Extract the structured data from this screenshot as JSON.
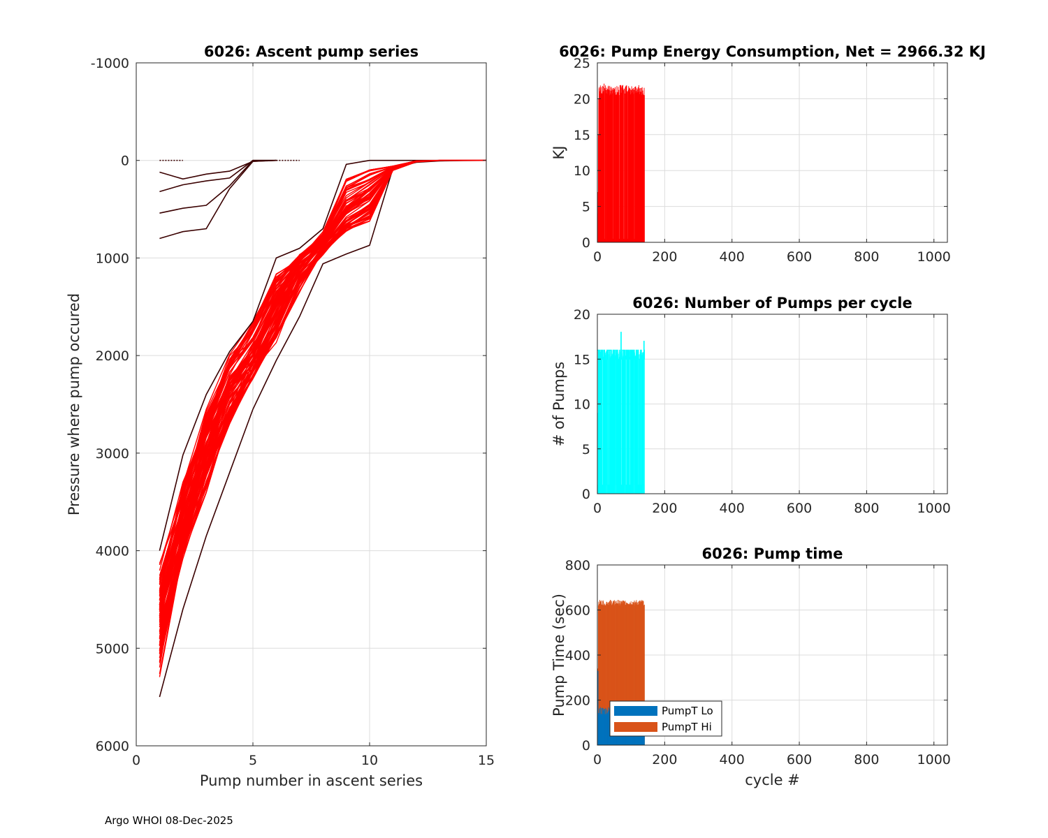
{
  "footer": "Argo WHOI 08-Dec-2025",
  "colors": {
    "profile": "#ff0000",
    "profile_edge": "#3a0000",
    "energy": "#ff0000",
    "pumps": "#00ffff",
    "lo": "#0072bd",
    "hi": "#d95319",
    "grid": "#dcdcdc"
  },
  "chart_data": [
    {
      "id": "ascent",
      "type": "line",
      "title": "6026: Ascent pump series",
      "xlabel": "Pump number in ascent series",
      "ylabel": "Pressure where pump occured",
      "xlim": [
        0,
        15
      ],
      "ylim": [
        -1000,
        6000
      ],
      "y_reversed": true,
      "xticks": [
        0,
        5,
        10,
        15
      ],
      "yticks": [
        -1000,
        0,
        1000,
        2000,
        3000,
        4000,
        5000,
        6000
      ],
      "grid": true,
      "series": [
        {
          "name": "early profile",
          "x": [
            1,
            2,
            3,
            4,
            5,
            6
          ],
          "y": [
            800,
            730,
            700,
            290,
            10,
            0
          ]
        },
        {
          "name": "early profile",
          "x": [
            1,
            2,
            3,
            4,
            5,
            6
          ],
          "y": [
            540,
            490,
            460,
            260,
            0,
            0
          ]
        },
        {
          "name": "early profile",
          "x": [
            1,
            2,
            3,
            4,
            5,
            6
          ],
          "y": [
            320,
            250,
            210,
            180,
            0,
            0
          ]
        },
        {
          "name": "early profile",
          "x": [
            1,
            2,
            3,
            4,
            5,
            6
          ],
          "y": [
            120,
            190,
            140,
            110,
            10,
            0
          ]
        },
        {
          "name": "surface profile",
          "x": [
            1,
            2
          ],
          "y": [
            0,
            0
          ]
        },
        {
          "name": "deep profile",
          "x": [
            1,
            2,
            3,
            4,
            5,
            6,
            7,
            8,
            9,
            10,
            11,
            12,
            13,
            14,
            15
          ],
          "y": [
            5500,
            4600,
            3850,
            3200,
            2550,
            2050,
            1600,
            1060,
            960,
            870,
            80,
            20,
            5,
            2,
            0
          ]
        },
        {
          "name": "shallowest profile",
          "x": [
            1,
            2,
            3,
            4,
            5,
            6,
            7,
            8,
            9,
            10,
            11,
            12,
            13,
            14,
            15
          ],
          "y": [
            4000,
            3020,
            2400,
            1960,
            1650,
            1000,
            900,
            700,
            40,
            0,
            0,
            0,
            0,
            0,
            0
          ]
        },
        {
          "name": "typical profile",
          "x": [
            1,
            2,
            3,
            4,
            5,
            6,
            7,
            8,
            9,
            10,
            11,
            12,
            13,
            14,
            15
          ],
          "y": [
            4600,
            3700,
            2900,
            2300,
            2000,
            1450,
            1000,
            820,
            500,
            300,
            80,
            10,
            0,
            0,
            0
          ]
        },
        {
          "name": "typical profile",
          "x": [
            1,
            2,
            3,
            4,
            5,
            6,
            7,
            8,
            9,
            10,
            11,
            12,
            13,
            14,
            15
          ],
          "y": [
            5100,
            4000,
            3300,
            2700,
            2200,
            1800,
            1300,
            900,
            650,
            500,
            90,
            10,
            0,
            0,
            0
          ]
        },
        {
          "name": "typical profile",
          "x": [
            1,
            2,
            3,
            4,
            5,
            6,
            7,
            8,
            9,
            10,
            11,
            12,
            13,
            14,
            15
          ],
          "y": [
            4300,
            3400,
            2650,
            2050,
            1700,
            1200,
            1000,
            750,
            200,
            100,
            60,
            5,
            0,
            0,
            0
          ]
        },
        {
          "name": "typical profile",
          "x": [
            1,
            2,
            3,
            4,
            5,
            6,
            7,
            8,
            9,
            10,
            11,
            12,
            13,
            14,
            15
          ],
          "y": [
            4900,
            3900,
            3100,
            2500,
            2150,
            1700,
            1200,
            950,
            700,
            600,
            100,
            15,
            0,
            0,
            0
          ]
        }
      ]
    },
    {
      "id": "energy",
      "type": "bar",
      "title": "6026: Pump Energy Consumption,  Net = 2966.32 KJ",
      "xlabel": "",
      "ylabel": "KJ",
      "xlim": [
        0,
        1040
      ],
      "ylim": [
        0,
        25
      ],
      "xticks": [
        0,
        200,
        400,
        600,
        800,
        1000
      ],
      "yticks": [
        0,
        5,
        10,
        15,
        20,
        25
      ],
      "grid": true,
      "x_range": [
        1,
        140
      ],
      "typical_value": 21.2,
      "max_value": 22.1,
      "note": "cycles 1-140, mostly ~21-22 KJ, early cycles ~7 KJ, last ~19.5 KJ"
    },
    {
      "id": "pumps",
      "type": "bar",
      "title": "6026: Number of Pumps per cycle",
      "xlabel": "",
      "ylabel": "# of Pumps",
      "xlim": [
        0,
        1040
      ],
      "ylim": [
        0,
        20
      ],
      "xticks": [
        0,
        200,
        400,
        600,
        800,
        1000
      ],
      "yticks": [
        0,
        5,
        10,
        15,
        20
      ],
      "grid": true,
      "x_range": [
        1,
        140
      ],
      "typical_value": 16,
      "max_value": 18,
      "note": "cycles 1-140, mostly 15-16 pumps, max 18, some cycles 1"
    },
    {
      "id": "pumptime",
      "type": "bar",
      "title": "6026: Pump time",
      "xlabel": "cycle #",
      "ylabel": "Pump Time (sec)",
      "xlim": [
        0,
        1040
      ],
      "ylim": [
        0,
        800
      ],
      "xticks": [
        0,
        200,
        400,
        600,
        800,
        1000
      ],
      "yticks": [
        0,
        200,
        400,
        600,
        800
      ],
      "grid": true,
      "legend": {
        "position": "bottom-left",
        "entries": [
          "PumpT Lo",
          "PumpT Hi"
        ]
      },
      "series": [
        {
          "name": "PumpT Lo",
          "x_range": [
            1,
            140
          ],
          "typical_value": 150,
          "max_value": 330
        },
        {
          "name": "PumpT Hi",
          "x_range": [
            1,
            140
          ],
          "typical_value": 630,
          "max_value": 660
        }
      ]
    }
  ]
}
